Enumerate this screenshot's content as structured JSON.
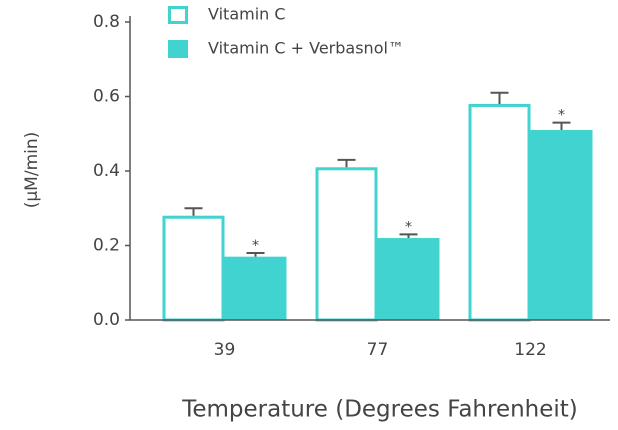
{
  "chart_data": {
    "type": "bar",
    "categories": [
      "39",
      "77",
      "122"
    ],
    "series": [
      {
        "name": "Vitamin C",
        "color": "#40d3cf",
        "filled": false,
        "values": [
          0.28,
          0.41,
          0.58
        ],
        "errors": [
          0.02,
          0.02,
          0.03
        ]
      },
      {
        "name": "Vitamin C + Verbasnol™",
        "color": "#40d3cf",
        "filled": true,
        "values": [
          0.17,
          0.22,
          0.51
        ],
        "errors": [
          0.01,
          0.01,
          0.02
        ],
        "markers": [
          "*",
          "*",
          "*"
        ]
      }
    ],
    "ylabel": "(µM/min)",
    "xlabel": "Temperature (Degrees Fahrenheit)",
    "ylim": [
      0,
      0.8
    ],
    "yticks": [
      {
        "value": 0,
        "label": "0.0"
      },
      0.2,
      0.4,
      0.6,
      0.8
    ],
    "error_color": "#555555"
  }
}
